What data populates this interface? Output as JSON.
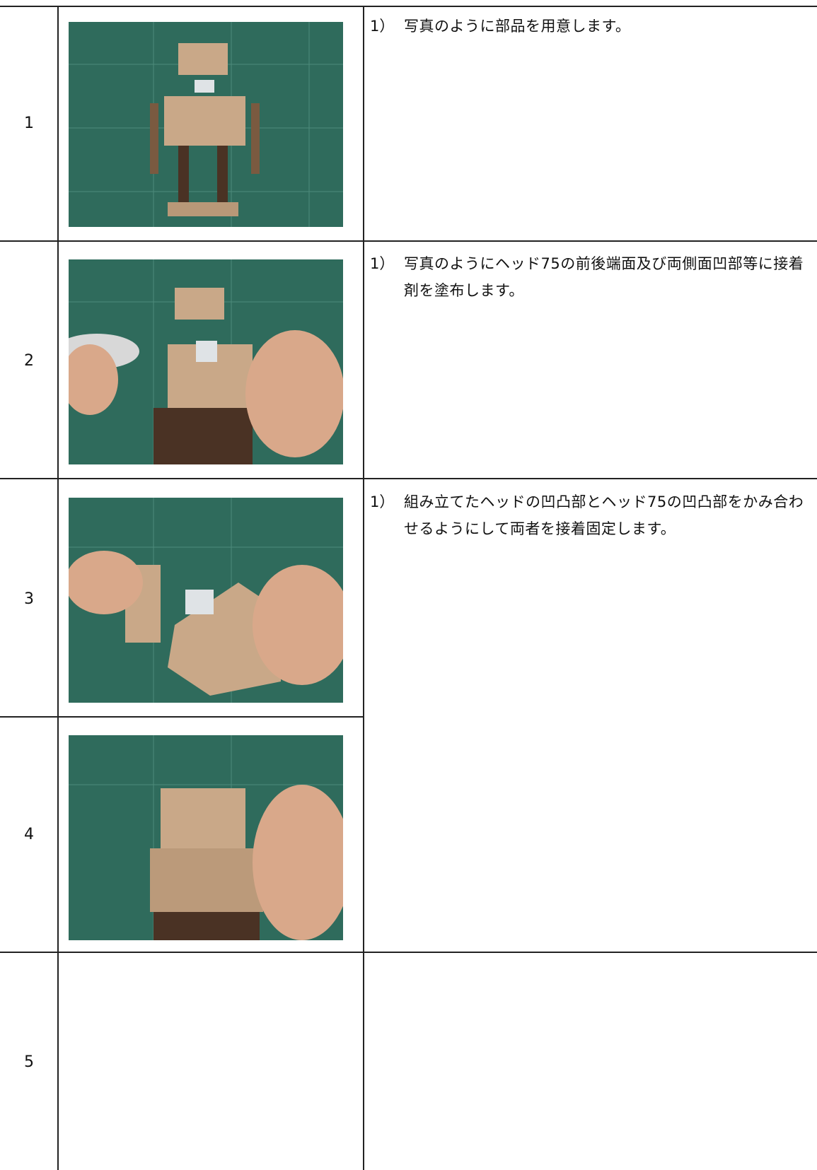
{
  "steps": [
    {
      "number": "1",
      "instructions": [
        {
          "marker": "1）",
          "text": "写真のように部品を用意します。"
        }
      ]
    },
    {
      "number": "2",
      "instructions": [
        {
          "marker": "1）",
          "text": "写真のようにヘッド75の前後端面及び両側面凹部等に接着剤を塗布します。"
        }
      ]
    },
    {
      "number": "3",
      "instructions": [
        {
          "marker": "1）",
          "text": "組み立てたヘッドの凹凸部とヘッド75の凹凸部をかみ合わせるようにして両者を接着固定します。"
        }
      ]
    },
    {
      "number": "4"
    },
    {
      "number": "5"
    }
  ]
}
